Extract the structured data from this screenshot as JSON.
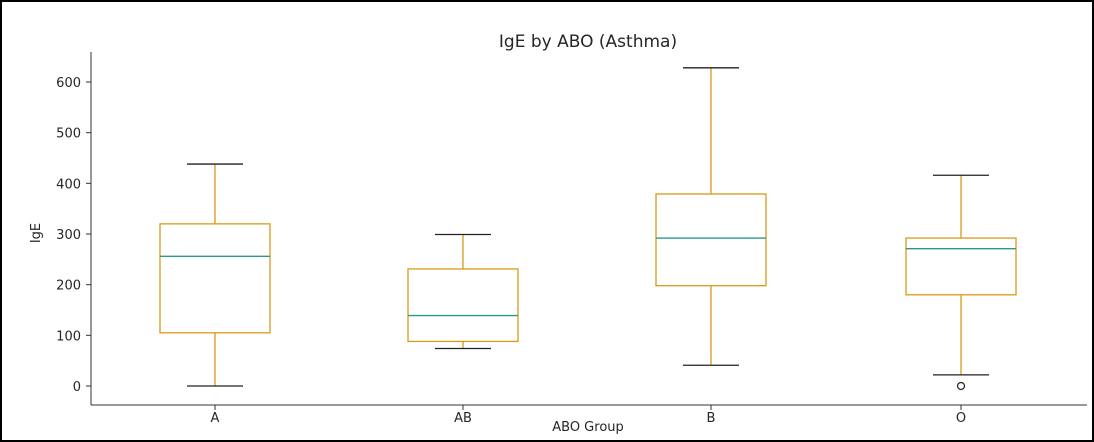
{
  "chart_data": {
    "type": "boxplot",
    "title": "IgE by ABO (Asthma)",
    "xlabel": "ABO Group",
    "ylabel": "IgE",
    "ylim": [
      -35,
      660
    ],
    "yticks": [
      0,
      100,
      200,
      300,
      400,
      500,
      600
    ],
    "grid": false,
    "categories": [
      "A",
      "AB",
      "B",
      "O"
    ],
    "boxes": [
      {
        "category": "A",
        "whisker_low": 0,
        "q1": 105,
        "median": 256,
        "q3": 320,
        "whisker_high": 438,
        "outliers": []
      },
      {
        "category": "AB",
        "whisker_low": 74,
        "q1": 88,
        "median": 139,
        "q3": 231,
        "whisker_high": 299,
        "outliers": []
      },
      {
        "category": "B",
        "whisker_low": 41,
        "q1": 198,
        "median": 292,
        "q3": 379,
        "whisker_high": 628,
        "outliers": []
      },
      {
        "category": "O",
        "whisker_low": 22,
        "q1": 180,
        "median": 271,
        "q3": 292,
        "whisker_high": 416,
        "outliers": [
          0
        ]
      }
    ],
    "colors": {
      "box": "#d89b18",
      "median": "#2a9a8a",
      "whisker_cap": "#222222",
      "axis": "#333333"
    }
  }
}
